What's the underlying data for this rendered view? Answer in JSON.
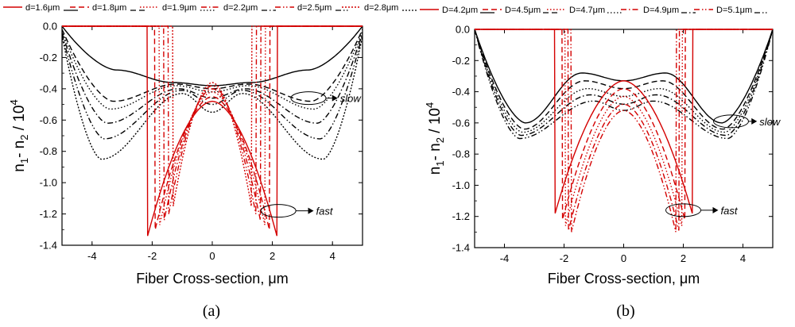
{
  "chart_data": [
    {
      "id": "a",
      "type": "line",
      "panel_label": "(a)",
      "xlabel": "Fiber Cross-section, μm",
      "ylabel_parts": [
        "n",
        "1",
        "- n",
        "2",
        " / 10",
        "4"
      ],
      "xlim": [
        -5,
        5
      ],
      "ylim": [
        -1.4,
        0.0
      ],
      "xticks": [
        -4,
        -2,
        0,
        2,
        4
      ],
      "yticks": [
        0.0,
        -0.2,
        -0.4,
        -0.6,
        -0.8,
        -1.0,
        -1.2,
        -1.4
      ],
      "ytick_labels": [
        "0.0",
        "-0.2",
        "-0.4",
        "-0.6",
        "-0.8",
        "-1.0",
        "-1.2",
        "-1.4"
      ],
      "legend": [
        {
          "label": "d=1.6μm",
          "color": "#d40000",
          "dash": "solid"
        },
        {
          "label": "d=1.8μm",
          "color": "#d40000",
          "dash": "dash"
        },
        {
          "label": "d=1.9μm",
          "color": "#d40000",
          "dash": "dot"
        },
        {
          "label": "d=2.2μm",
          "color": "#d40000",
          "dash": "dashdot"
        },
        {
          "label": "d=2.5μm",
          "color": "#d40000",
          "dash": "dashdotdot"
        },
        {
          "label": "d=2.8μm",
          "color": "#d40000",
          "dash": "shortdot"
        }
      ],
      "annotations": [
        {
          "text": "slow",
          "x": 4.2,
          "y": -0.47,
          "from": [
            3.2,
            -0.46
          ]
        },
        {
          "text": "fast",
          "x": 3.4,
          "y": -1.18,
          "from": [
            2.2,
            -1.18
          ]
        }
      ],
      "slow_series": [
        {
          "label": "d=1.6μm",
          "dash": "solid",
          "edge": 0.0,
          "rip": 0.28,
          "ripx": 3.2,
          "center": -0.38,
          "mid": -0.36,
          "midx": 1.3
        },
        {
          "label": "d=1.8μm",
          "dash": "dash",
          "edge": -0.02,
          "rip": 0.48,
          "ripx": 3.3,
          "center": -0.4,
          "mid": -0.37,
          "midx": 1.2
        },
        {
          "label": "d=1.9μm",
          "dash": "dot",
          "edge": -0.03,
          "rip": 0.53,
          "ripx": 3.4,
          "center": -0.42,
          "mid": -0.38,
          "midx": 1.2
        },
        {
          "label": "d=2.2μm",
          "dash": "dashdot",
          "edge": -0.04,
          "rip": 0.62,
          "ripx": 3.5,
          "center": -0.46,
          "mid": -0.4,
          "midx": 1.1
        },
        {
          "label": "d=2.5μm",
          "dash": "dashdotdot",
          "edge": -0.05,
          "rip": 0.72,
          "ripx": 3.6,
          "center": -0.5,
          "mid": -0.41,
          "midx": 1.0
        },
        {
          "label": "d=2.8μm",
          "dash": "shortdot",
          "edge": -0.06,
          "rip": 0.85,
          "ripx": 3.7,
          "center": -0.55,
          "mid": -0.43,
          "midx": 1.0
        }
      ],
      "fast_series": [
        {
          "label": "d=1.6μm",
          "dash": "solid",
          "core": 2.15,
          "top": -0.48,
          "bottom": -1.34
        },
        {
          "label": "d=1.8μm",
          "dash": "dash",
          "core": 1.9,
          "top": -0.45,
          "bottom": -1.3
        },
        {
          "label": "d=1.9μm",
          "dash": "dot",
          "core": 1.75,
          "top": -0.42,
          "bottom": -1.27
        },
        {
          "label": "d=2.2μm",
          "dash": "dashdot",
          "core": 1.6,
          "top": -0.4,
          "bottom": -1.24
        },
        {
          "label": "d=2.5μm",
          "dash": "dashdotdot",
          "core": 1.45,
          "top": -0.38,
          "bottom": -1.2
        },
        {
          "label": "d=2.8μm",
          "dash": "shortdot",
          "core": 1.3,
          "top": -0.36,
          "bottom": -1.15
        }
      ]
    },
    {
      "id": "b",
      "type": "line",
      "panel_label": "(b)",
      "xlabel": "Fiber Cross-section, μm",
      "ylabel_parts": [
        "n",
        "1",
        "- n",
        "2",
        " / 10",
        "4"
      ],
      "xlim": [
        -5,
        5
      ],
      "ylim": [
        -1.4,
        0.0
      ],
      "xticks": [
        -4,
        -2,
        0,
        2,
        4
      ],
      "yticks": [
        0.0,
        -0.2,
        -0.4,
        -0.6,
        -0.8,
        -1.0,
        -1.2,
        -1.4
      ],
      "ytick_labels": [
        "0.0",
        "-0.2",
        "-0.4",
        "-0.6",
        "-0.8",
        "-1.0",
        "-1.2",
        "-1.4"
      ],
      "legend": [
        {
          "label": "D=4.2μm",
          "color": "#d40000",
          "dash": "solid"
        },
        {
          "label": "D=4.5μm",
          "color": "#d40000",
          "dash": "dash"
        },
        {
          "label": "D=4.7μm",
          "color": "#d40000",
          "dash": "dot"
        },
        {
          "label": "D=4.9μm",
          "color": "#d40000",
          "dash": "dashdot"
        },
        {
          "label": "D=5.1μm",
          "color": "#d40000",
          "dash": "dashdotdot"
        }
      ],
      "annotations": [
        {
          "text": "slow",
          "x": 4.5,
          "y": -0.58,
          "from": [
            3.6,
            -0.59
          ]
        },
        {
          "text": "fast",
          "x": 3.2,
          "y": -1.16,
          "from": [
            2.0,
            -1.16
          ]
        }
      ],
      "slow_series": [
        {
          "label": "D=4.2μm",
          "dash": "solid",
          "edge": 0.0,
          "rip": 0.6,
          "ripx": 3.3,
          "center": -0.33,
          "mid": -0.28,
          "midx": 1.4
        },
        {
          "label": "D=4.5μm",
          "dash": "dash",
          "edge": 0.0,
          "rip": 0.64,
          "ripx": 3.35,
          "center": -0.38,
          "mid": -0.33,
          "midx": 1.3
        },
        {
          "label": "D=4.7μm",
          "dash": "dot",
          "edge": 0.0,
          "rip": 0.66,
          "ripx": 3.4,
          "center": -0.43,
          "mid": -0.38,
          "midx": 1.2
        },
        {
          "label": "D=4.9μm",
          "dash": "dashdot",
          "edge": 0.0,
          "rip": 0.68,
          "ripx": 3.45,
          "center": -0.48,
          "mid": -0.42,
          "midx": 1.1
        },
        {
          "label": "D=5.1μm",
          "dash": "dashdotdot",
          "edge": 0.0,
          "rip": 0.7,
          "ripx": 3.5,
          "center": -0.52,
          "mid": -0.46,
          "midx": 1.0
        }
      ],
      "fast_series": [
        {
          "label": "D=4.2μm",
          "dash": "solid",
          "core": 2.3,
          "top": -0.33,
          "bottom": -1.18
        },
        {
          "label": "D=4.5μm",
          "dash": "dash",
          "core": 2.05,
          "top": -0.38,
          "bottom": -1.22
        },
        {
          "label": "D=4.7μm",
          "dash": "dot",
          "core": 1.95,
          "top": -0.43,
          "bottom": -1.26
        },
        {
          "label": "D=4.9μm",
          "dash": "dashdot",
          "core": 1.85,
          "top": -0.48,
          "bottom": -1.29
        },
        {
          "label": "D=5.1μm",
          "dash": "dashdotdot",
          "core": 1.75,
          "top": -0.52,
          "bottom": -1.3
        }
      ]
    }
  ]
}
